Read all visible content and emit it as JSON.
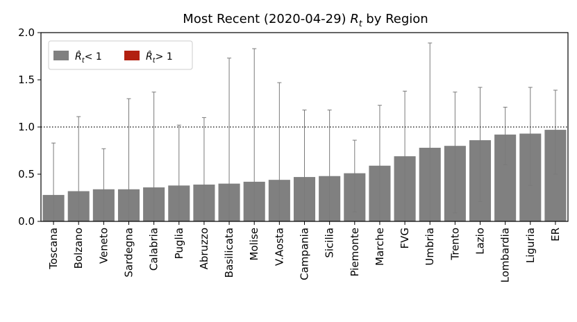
{
  "chart_data": {
    "type": "bar",
    "title_prefix": "Most Recent (2020-04-29) ",
    "title_symbol": "R",
    "title_subscript": "t",
    "title_suffix": " by Region",
    "categories": [
      "Toscana",
      "Bolzano",
      "Veneto",
      "Sardegna",
      "Calabria",
      "Puglia",
      "Abruzzo",
      "Basilicata",
      "Molise",
      "V.Aosta",
      "Campania",
      "Sicilia",
      "Piemonte",
      "Marche",
      "FVG",
      "Umbria",
      "Trento",
      "Lazio",
      "Lombardia",
      "Liguria",
      "ER"
    ],
    "values": [
      0.28,
      0.32,
      0.34,
      0.34,
      0.36,
      0.38,
      0.39,
      0.4,
      0.42,
      0.44,
      0.47,
      0.48,
      0.51,
      0.59,
      0.69,
      0.78,
      0.8,
      0.86,
      0.92,
      0.93,
      0.97
    ],
    "error_low": [
      0.0,
      0.0,
      0.0,
      0.0,
      0.0,
      0.0,
      0.0,
      0.0,
      0.0,
      0.0,
      0.0,
      0.0,
      0.1,
      0.0,
      0.0,
      0.0,
      0.09,
      0.21,
      0.6,
      0.38,
      0.5
    ],
    "error_high": [
      0.83,
      1.11,
      0.77,
      1.3,
      1.37,
      1.02,
      1.1,
      1.73,
      1.83,
      1.47,
      1.18,
      1.18,
      0.86,
      1.23,
      1.38,
      1.89,
      1.37,
      1.42,
      1.21,
      1.42,
      1.39
    ],
    "ylim": [
      0,
      2.0
    ],
    "yticks": [
      0.0,
      0.5,
      1.0,
      1.5,
      2.0
    ],
    "ytick_labels": [
      "0.0",
      "0.5",
      "1.0",
      "1.5",
      "2.0"
    ],
    "reference_line": 1.0,
    "legend": {
      "placement": "top-left",
      "entries": [
        {
          "label": "< 1",
          "color": "#808080"
        },
        {
          "label": "> 1",
          "color": "#b22010"
        }
      ]
    },
    "bar_color": "#808080",
    "error_color": "#7a7a7a"
  }
}
